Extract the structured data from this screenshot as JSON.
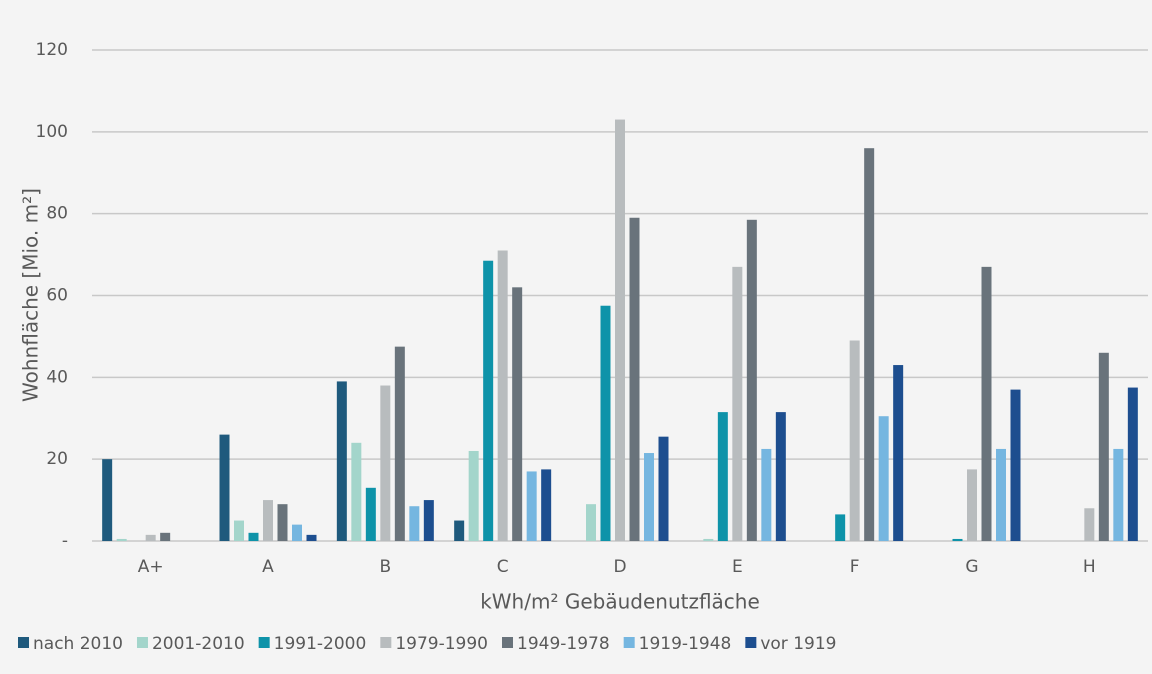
{
  "chart_data": {
    "type": "bar",
    "xlabel": "kWh/m² Gebäudenutzfläche",
    "ylabel": "Wohnfläche [Mio. m²]",
    "categories": [
      "A+",
      "A",
      "B",
      "C",
      "D",
      "E",
      "F",
      "G",
      "H"
    ],
    "series": [
      {
        "name": "nach 2010",
        "color": "#1f5a7d",
        "values": [
          20,
          26,
          39,
          5,
          0,
          0,
          0,
          0,
          0
        ]
      },
      {
        "name": "2001-2010",
        "color": "#a3d5cb",
        "values": [
          0.5,
          5,
          24,
          22,
          9,
          0.5,
          0,
          0,
          0
        ]
      },
      {
        "name": "1991-2000",
        "color": "#0e93a9",
        "values": [
          0,
          2,
          13,
          68.5,
          57.5,
          31.5,
          6.5,
          0.5,
          0
        ]
      },
      {
        "name": "1979-1990",
        "color": "#b8bcbe",
        "values": [
          1.5,
          10,
          38,
          71,
          103,
          67,
          49,
          17.5,
          8
        ]
      },
      {
        "name": "1949-1978",
        "color": "#69737b",
        "values": [
          2,
          9,
          47.5,
          62,
          79,
          78.5,
          96,
          67,
          46
        ]
      },
      {
        "name": "1919-1948",
        "color": "#75b6e0",
        "values": [
          0,
          4,
          8.5,
          17,
          21.5,
          22.5,
          30.5,
          22.5,
          22.5
        ]
      },
      {
        "name": "vor 1919",
        "color": "#1d4e8f",
        "values": [
          0,
          1.5,
          10,
          17.5,
          25.5,
          31.5,
          43,
          37,
          37.5
        ]
      }
    ],
    "ylim": [
      0,
      120
    ],
    "yticks": [
      {
        "value": 0,
        "label": "-"
      },
      20,
      40,
      60,
      80,
      100,
      120
    ],
    "grid": true
  }
}
